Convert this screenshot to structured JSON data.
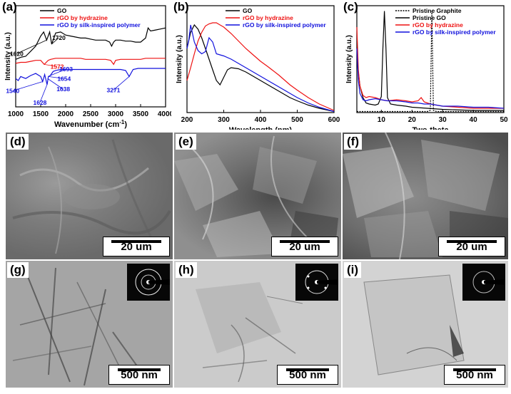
{
  "figure": {
    "panels": {
      "a": "(a)",
      "b": "(b)",
      "c": "(c)",
      "d": "(d)",
      "e": "(e)",
      "f": "(f)",
      "g": "(g)",
      "h": "(h)",
      "i": "(i)"
    },
    "sem_scale": "20 um",
    "tem_scale": "500 nm"
  },
  "chart_data": [
    {
      "type": "line",
      "panel": "(a)",
      "xlabel": "Wavenumber (cm",
      "xlabel_sup": "-1",
      "xlabel_end": ")",
      "ylabel": "Intensity (a.u.)",
      "xlim": [
        1000,
        4000
      ],
      "xticks": [
        "1000",
        "1500",
        "2000",
        "2500",
        "3000",
        "3500",
        "4000"
      ],
      "series": [
        {
          "name": "GO",
          "color": "#000000",
          "x": [
            1000,
            1100,
            1200,
            1300,
            1400,
            1500,
            1560,
            1620,
            1680,
            1720,
            1800,
            1900,
            2000,
            2100,
            2200,
            2300,
            2400,
            2500,
            2600,
            2700,
            2800,
            2880,
            2920,
            2960,
            3000,
            3100,
            3200,
            3300,
            3400,
            3500,
            3600,
            3650,
            3700,
            3800,
            3900,
            4000
          ],
          "y": [
            47,
            49,
            50,
            55,
            60,
            70,
            74,
            66,
            74,
            62,
            73,
            74,
            71,
            70,
            69,
            68,
            68,
            67,
            66,
            66,
            66,
            64,
            60,
            64,
            66,
            66,
            65,
            65,
            64,
            64,
            68,
            78,
            75,
            76,
            77,
            78
          ]
        },
        {
          "name": "rGO by hydrazine",
          "color": "#ee1111",
          "x": [
            1000,
            1100,
            1200,
            1300,
            1400,
            1500,
            1572,
            1650,
            1700,
            1800,
            1900,
            2000,
            2100,
            2200,
            2300,
            2400,
            2500,
            2600,
            2700,
            2800,
            2900,
            2960,
            3000,
            3100,
            3200,
            3300,
            3400,
            3500,
            3600,
            3700,
            3800,
            3900,
            4000
          ],
          "y": [
            43,
            44,
            44,
            45,
            46,
            46,
            42,
            46,
            47,
            48,
            48,
            48,
            48,
            48,
            48,
            47,
            47,
            47,
            47,
            47,
            46,
            42,
            46,
            47,
            47,
            47,
            47,
            47,
            48,
            48,
            48,
            48,
            48
          ]
        },
        {
          "name": "rGO by silk-inspired polymer",
          "color": "#1111dd",
          "x": [
            1000,
            1050,
            1100,
            1200,
            1300,
            1400,
            1500,
            1540,
            1580,
            1628,
            1654,
            1693,
            1750,
            1800,
            1900,
            2000,
            2200,
            2400,
            2600,
            2800,
            2900,
            3000,
            3100,
            3200,
            3271,
            3350,
            3450,
            3600,
            3800,
            4000
          ],
          "y": [
            28,
            26,
            30,
            28,
            31,
            33,
            30,
            25,
            32,
            22,
            30,
            31,
            35,
            36,
            37,
            37,
            37,
            37,
            37,
            37,
            37,
            37,
            37,
            36,
            30,
            37,
            38,
            38,
            38,
            38
          ]
        }
      ],
      "annotations": [
        {
          "text": "1620",
          "color": "#000000"
        },
        {
          "text": "1720",
          "color": "#000000"
        },
        {
          "text": "1572",
          "color": "#ee1111"
        },
        {
          "text": "1693",
          "color": "#1111dd"
        },
        {
          "text": "1654",
          "color": "#1111dd"
        },
        {
          "text": "1638",
          "color": "#1111dd"
        },
        {
          "text": "1540",
          "color": "#1111dd"
        },
        {
          "text": "1628",
          "color": "#1111dd"
        },
        {
          "text": "3271",
          "color": "#1111dd"
        }
      ]
    },
    {
      "type": "line",
      "panel": "(b)",
      "xlabel": "Wavelength (nm)",
      "ylabel": "Intensity (a.u.)",
      "xlim": [
        200,
        600
      ],
      "xticks": [
        "200",
        "300",
        "400",
        "500",
        "600"
      ],
      "series": [
        {
          "name": "GO",
          "color": "#000000",
          "x": [
            200,
            210,
            220,
            230,
            240,
            250,
            260,
            270,
            280,
            290,
            300,
            310,
            320,
            340,
            360,
            380,
            400,
            420,
            450,
            480,
            500,
            530,
            560,
            600
          ],
          "y": [
            60,
            75,
            82,
            78,
            70,
            60,
            50,
            40,
            30,
            26,
            33,
            40,
            42,
            41,
            38,
            34,
            30,
            26,
            20,
            14,
            11,
            7,
            4,
            1
          ]
        },
        {
          "name": "rGO by hydrazine",
          "color": "#ee1111",
          "x": [
            200,
            210,
            220,
            230,
            240,
            250,
            260,
            270,
            280,
            290,
            300,
            320,
            340,
            360,
            380,
            400,
            420,
            450,
            480,
            500,
            530,
            560,
            600
          ],
          "y": [
            30,
            42,
            55,
            67,
            75,
            81,
            83,
            84,
            84,
            82,
            80,
            74,
            67,
            60,
            54,
            48,
            43,
            35,
            26,
            21,
            14,
            8,
            2
          ]
        },
        {
          "name": "rGO by silk-inspired polymer",
          "color": "#1111dd",
          "x": [
            200,
            205,
            210,
            220,
            230,
            240,
            250,
            260,
            270,
            280,
            290,
            300,
            320,
            340,
            360,
            380,
            400,
            420,
            450,
            480,
            500,
            530,
            560,
            600
          ],
          "y": [
            60,
            68,
            82,
            66,
            58,
            55,
            57,
            70,
            66,
            55,
            54,
            53,
            50,
            46,
            42,
            38,
            34,
            30,
            24,
            18,
            14,
            9,
            5,
            1
          ]
        }
      ]
    },
    {
      "type": "line",
      "panel": "(c)",
      "xlabel": "Two-theta",
      "ylabel": "Intensity (a.u.)",
      "xlim": [
        2,
        50
      ],
      "xticks": [
        "10",
        "20",
        "30",
        "40",
        "50"
      ],
      "series": [
        {
          "name": "Pristine Graphite",
          "color": "#000000",
          "dash": true,
          "x": [
            2,
            10,
            20,
            25,
            26,
            26.5,
            27,
            28,
            30,
            40,
            50
          ],
          "y": [
            1,
            1,
            1,
            1,
            2,
            95,
            2,
            1,
            1,
            1,
            1
          ]
        },
        {
          "name": "Pristine GO",
          "color": "#000000",
          "x": [
            2,
            3,
            4,
            5,
            6,
            8,
            9,
            10,
            10.5,
            11,
            11.5,
            12,
            13,
            15,
            18,
            20,
            25,
            30,
            40,
            50
          ],
          "y": [
            50,
            25,
            14,
            9,
            8,
            7,
            8,
            15,
            60,
            95,
            60,
            14,
            8,
            7,
            6,
            5,
            4,
            3,
            2,
            2
          ]
        },
        {
          "name": "rGO by hydrazine",
          "color": "#ee1111",
          "x": [
            2,
            2.5,
            3,
            4,
            5,
            6,
            8,
            10,
            12,
            15,
            18,
            20,
            22,
            23,
            24,
            26,
            28,
            30,
            35,
            40,
            45,
            50
          ],
          "y": [
            80,
            40,
            25,
            16,
            14,
            15,
            14,
            12,
            11,
            12,
            11,
            10,
            11,
            14,
            10,
            8,
            7,
            6,
            5,
            4,
            4,
            4
          ]
        },
        {
          "name": "rGO by silk-inspired polymer",
          "color": "#1111dd",
          "x": [
            2,
            2.5,
            3,
            4,
            5,
            6,
            8,
            10,
            12,
            15,
            18,
            20,
            22,
            24,
            26,
            28,
            30,
            35,
            40,
            45,
            50
          ],
          "y": [
            60,
            30,
            18,
            12,
            11,
            12,
            13,
            12,
            11,
            11,
            10,
            9,
            9,
            8,
            8,
            7,
            6,
            6,
            5,
            5,
            4
          ]
        }
      ]
    }
  ]
}
